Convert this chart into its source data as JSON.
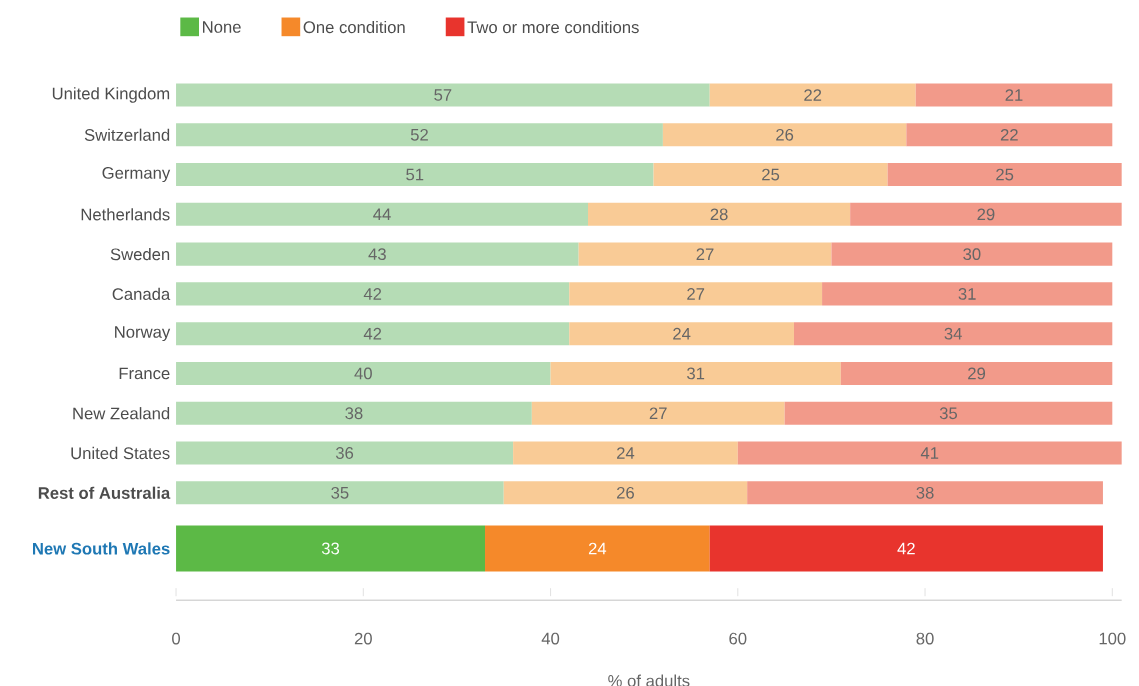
{
  "chart_data": {
    "type": "bar",
    "orientation": "horizontal",
    "stacked": true,
    "data_labels": true,
    "legend": "top left",
    "xlabel": "% of adults",
    "xlim": [
      0,
      101
    ],
    "xticks": [
      0,
      20,
      40,
      60,
      80,
      100
    ],
    "categories": [
      "United Kingdom",
      "Switzerland",
      "Germany",
      "Netherlands",
      "Sweden",
      "Canada",
      "Norway",
      "France",
      "New Zealand",
      "United States",
      "Rest of Australia",
      "New South Wales"
    ],
    "series": [
      {
        "name": "None",
        "color": "#5cb946",
        "colors": [
          "#b5dcb5",
          "#b5dcb5",
          "#b5dcb5",
          "#b5dcb5",
          "#b5dcb5",
          "#b5dcb5",
          "#b5dcb5",
          "#b5dcb5",
          "#b5dcb5",
          "#b5dcb5",
          "#b5dcb5",
          "#5cb946"
        ],
        "values": [
          57,
          52,
          51,
          44,
          43,
          42,
          42,
          40,
          38,
          36,
          35,
          33
        ]
      },
      {
        "name": "One condition",
        "color": "#f5892a",
        "colors": [
          "#f9cb96",
          "#f9cb96",
          "#f9cb96",
          "#f9cb96",
          "#f9cb96",
          "#f9cb96",
          "#f9cb96",
          "#f9cb96",
          "#f9cb96",
          "#f9cb96",
          "#f9cb96",
          "#f5892a"
        ],
        "values": [
          22,
          26,
          25,
          28,
          27,
          27,
          24,
          31,
          27,
          24,
          26,
          24
        ]
      },
      {
        "name": "Two or more conditions",
        "color": "#e8342d",
        "colors": [
          "#f29a8a",
          "#f29a8a",
          "#f29a8a",
          "#f29a8a",
          "#f29a8a",
          "#f29a8a",
          "#f29a8a",
          "#f29a8a",
          "#f29a8a",
          "#f29a8a",
          "#f29a8a",
          "#e8342d"
        ],
        "values": [
          21,
          22,
          25,
          29,
          30,
          31,
          34,
          29,
          35,
          41,
          38,
          42
        ]
      }
    ]
  }
}
